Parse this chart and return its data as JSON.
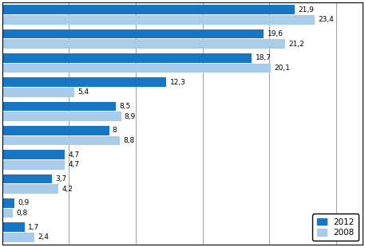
{
  "groups": [
    {
      "val2012": 21.9,
      "val2008": 23.4
    },
    {
      "val2012": 19.6,
      "val2008": 21.2
    },
    {
      "val2012": 18.7,
      "val2008": 20.1
    },
    {
      "val2012": 12.3,
      "val2008": 5.4
    },
    {
      "val2012": 8.5,
      "val2008": 8.9
    },
    {
      "val2012": 8.0,
      "val2008": 8.8
    },
    {
      "val2012": 4.7,
      "val2008": 4.7
    },
    {
      "val2012": 3.7,
      "val2008": 4.2
    },
    {
      "val2012": 0.9,
      "val2008": 0.8
    },
    {
      "val2012": 1.7,
      "val2008": 2.4
    }
  ],
  "color_2012": "#1777C4",
  "color_2008": "#A8CCEA",
  "label_2012": "2012",
  "label_2008": "2008",
  "xlim": [
    0,
    27
  ],
  "bar_height": 0.42,
  "label_fontsize": 6.5,
  "legend_fontsize": 7.5,
  "tick_fontsize": 7,
  "background_color": "#ffffff",
  "gridline_color": "#909090",
  "gridline_x": [
    5,
    10,
    15,
    20,
    25
  ]
}
